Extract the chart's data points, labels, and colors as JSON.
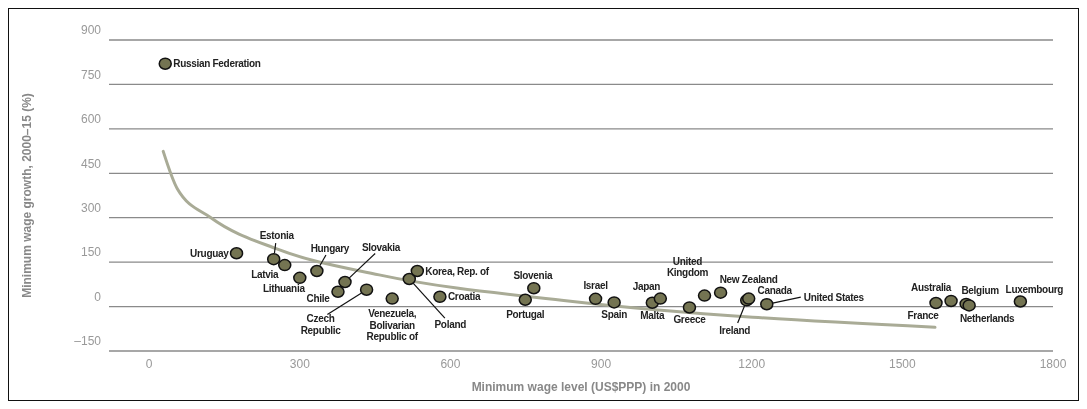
{
  "chart_data": {
    "type": "scatter",
    "xlabel": "Minimum wage level (US$PPP) in 2000",
    "ylabel": "Minimum wage growth, 2000–15 (%)",
    "xlim": [
      -80,
      1800
    ],
    "xticks": [
      0,
      300,
      600,
      900,
      1200,
      1500,
      1800
    ],
    "ylim": [
      -150,
      900
    ],
    "yticks": [
      {
        "value": -150,
        "label": "–150"
      },
      0,
      150,
      300,
      450,
      600,
      750,
      900
    ],
    "grid": "y",
    "marker": "circle",
    "series": [
      {
        "color": "#747452",
        "x": [
          32,
          174,
          248,
          270,
          300,
          334,
          390,
          376,
          433,
          484,
          518,
          534,
          579,
          766,
          749,
          889,
          926,
          1002,
          1018,
          1076,
          1106,
          1138,
          1190,
          1194,
          1230,
          1567,
          1597,
          1627,
          1633,
          1735
        ],
        "values": [
          820,
          180,
          160,
          140,
          97,
          120,
          83,
          50,
          57,
          27,
          93,
          120,
          33,
          62,
          23,
          26,
          14,
          13,
          27,
          -3,
          37,
          47,
          21,
          27,
          8,
          12,
          19,
          9,
          4,
          17
        ]
      },
      {
        "type": "line",
        "color": "#a9ab96",
        "marker": "none",
        "x": [
          28,
          56,
          123,
          257,
          458,
          839,
          1565
        ],
        "values": [
          524,
          398,
          300,
          193,
          107,
          18,
          -70
        ]
      }
    ],
    "annotations": [
      {
        "text": "Russian Federation",
        "x": 32,
        "y": 820
      },
      {
        "text": "Uruguay",
        "x": 174,
        "y": 180
      },
      {
        "text": "Estonia",
        "x": 248,
        "y": 160
      },
      {
        "text": "Latvia",
        "x": 270,
        "y": 140
      },
      {
        "text": "Lithuania",
        "x": 300,
        "y": 97
      },
      {
        "text": "Hungary",
        "x": 334,
        "y": 120
      },
      {
        "text": "Slovakia",
        "x": 390,
        "y": 83
      },
      {
        "text": "Chile",
        "x": 376,
        "y": 50
      },
      {
        "text": "Czech\nRepublic",
        "x": 433,
        "y": 57
      },
      {
        "text": "Venezuela,\nBolivarian\nRepublic of",
        "x": 484,
        "y": 27
      },
      {
        "text": "Poland",
        "x": 518,
        "y": 93
      },
      {
        "text": "Korea, Rep. of",
        "x": 534,
        "y": 120
      },
      {
        "text": "Croatia",
        "x": 579,
        "y": 33
      },
      {
        "text": "Slovenia",
        "x": 766,
        "y": 62
      },
      {
        "text": "Portugal",
        "x": 749,
        "y": 23
      },
      {
        "text": "Israel",
        "x": 889,
        "y": 26
      },
      {
        "text": "Spain",
        "x": 926,
        "y": 14
      },
      {
        "text": "Malta",
        "x": 1002,
        "y": 13
      },
      {
        "text": "Japan",
        "x": 1018,
        "y": 27
      },
      {
        "text": "Greece",
        "x": 1076,
        "y": -3
      },
      {
        "text": "United\nKingdom",
        "x": 1106,
        "y": 37
      },
      {
        "text": "New Zealand",
        "x": 1138,
        "y": 47
      },
      {
        "text": "Ireland",
        "x": 1190,
        "y": 21
      },
      {
        "text": "Canada",
        "x": 1194,
        "y": 27
      },
      {
        "text": "United States",
        "x": 1230,
        "y": 8
      },
      {
        "text": "France",
        "x": 1567,
        "y": 12
      },
      {
        "text": "Australia",
        "x": 1597,
        "y": 19
      },
      {
        "text": "Belgium",
        "x": 1627,
        "y": 9
      },
      {
        "text": "Netherlands",
        "x": 1633,
        "y": 4
      },
      {
        "text": "Luxembourg",
        "x": 1735,
        "y": 17
      }
    ]
  }
}
